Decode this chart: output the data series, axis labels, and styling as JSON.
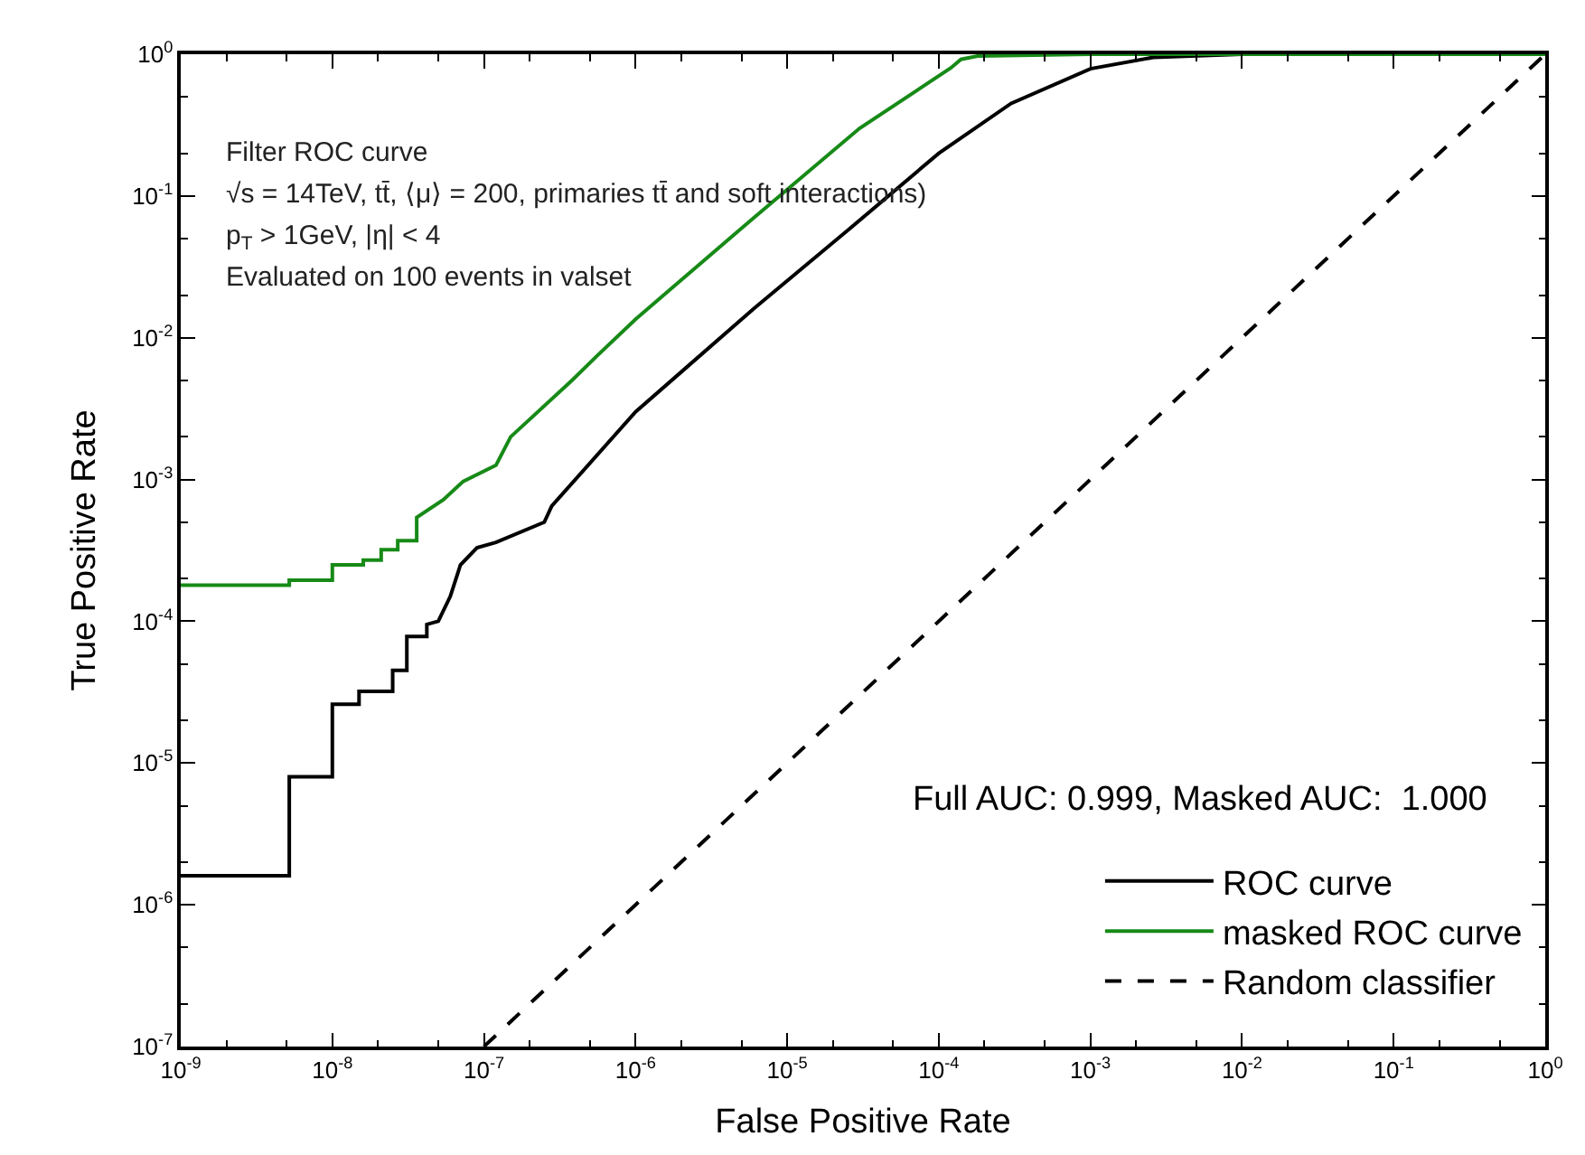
{
  "chart_data": {
    "type": "line",
    "xlabel": "False Positive Rate",
    "ylabel": "True Positive Rate",
    "log": "xy",
    "legend": "bottom right",
    "xlim": [
      1e-09,
      1
    ],
    "xticks": [
      {
        "value": 1e-09,
        "label": "10$^{-9}$"
      },
      {
        "value": 1e-08,
        "label": "10$^{-8}$"
      },
      {
        "value": 1e-07,
        "label": "10$^{-7}$"
      },
      {
        "value": 1e-06,
        "label": "10$^{-6}$"
      },
      {
        "value": 1e-05,
        "label": "10$^{-5}$"
      },
      {
        "value": 0.0001,
        "label": "10$^{-4}$"
      },
      {
        "value": 0.001,
        "label": "10$^{-3}$"
      },
      {
        "value": 0.01,
        "label": "10$^{-2}$"
      },
      {
        "value": 0.1,
        "label": "10$^{-1}$"
      },
      {
        "value": 1,
        "label": "10$^{0}$"
      }
    ],
    "ylim": [
      1e-07,
      1
    ],
    "yticks": [
      {
        "value": 1e-07,
        "label": "10$^{-7}$"
      },
      {
        "value": 1e-06,
        "label": "10$^{-6}$"
      },
      {
        "value": 1e-05,
        "label": "10$^{-5}$"
      },
      {
        "value": 0.0001,
        "label": "10$^{-4}$"
      },
      {
        "value": 0.001,
        "label": "10$^{-3}$"
      },
      {
        "value": 0.01,
        "label": "10$^{-2}$"
      },
      {
        "value": 0.1,
        "label": "10$^{-1}$"
      },
      {
        "value": 1,
        "label": "10$^{0}$"
      }
    ],
    "annotations": [
      "Filter ROC curve",
      "√s = 14TeV, tt̄, ⟨μ⟩ = 200, primaries tt̄ and soft interactions)",
      "p$_{T}$ > 1GeV, |η| < 4",
      "Evaluated on 100 events in valset",
      "Full AUC: 0.999, Masked AUC:  1.000"
    ],
    "series": [
      {
        "name": "ROC curve",
        "color": "#000000",
        "line_style": "solid",
        "x": [
          1e-09,
          5.2e-09,
          5.2e-09,
          1e-08,
          1e-08,
          1.5e-08,
          1.5e-08,
          2.5e-08,
          2.5e-08,
          3.1e-08,
          3.1e-08,
          4.2e-08,
          4.2e-08,
          5e-08,
          6e-08,
          7e-08,
          9e-08,
          1.2e-07,
          2.5e-07,
          2.8e-07,
          1e-06,
          6e-06,
          2.4e-05,
          0.0001,
          0.0003,
          0.001,
          0.0026,
          0.01,
          1
        ],
        "values": [
          1.6e-06,
          1.6e-06,
          8e-06,
          8e-06,
          2.6e-05,
          2.6e-05,
          3.2e-05,
          3.2e-05,
          4.5e-05,
          4.5e-05,
          7.8e-05,
          7.8e-05,
          9.5e-05,
          0.0001,
          0.00015,
          0.00025,
          0.00033,
          0.00036,
          0.0005,
          0.00065,
          0.003,
          0.016,
          0.055,
          0.2,
          0.45,
          0.79,
          0.95,
          1,
          1
        ]
      },
      {
        "name": "masked ROC curve",
        "color": "#178a17",
        "line_style": "solid",
        "x": [
          1e-09,
          5.2e-09,
          5.2e-09,
          1e-08,
          1e-08,
          1.6e-08,
          1.6e-08,
          2.1e-08,
          2.1e-08,
          2.7e-08,
          2.7e-08,
          3.6e-08,
          3.6e-08,
          5.4e-08,
          7.3e-08,
          1.2e-07,
          1.5e-07,
          3.8e-07,
          5.6e-07,
          1e-06,
          1.7e-06,
          6e-06,
          3e-05,
          0.00012,
          0.00014,
          0.00018,
          0.001,
          1
        ],
        "values": [
          0.00018,
          0.00018,
          0.000195,
          0.000195,
          0.00025,
          0.00025,
          0.00027,
          0.00027,
          0.00032,
          0.00032,
          0.00037,
          0.00037,
          0.00054,
          0.00072,
          0.00097,
          0.00126,
          0.002,
          0.005,
          0.0075,
          0.0135,
          0.022,
          0.07,
          0.3,
          0.8,
          0.92,
          0.97,
          1,
          1
        ]
      },
      {
        "name": "Random classifier",
        "color": "#000000",
        "line_style": "dashed",
        "x": [
          1e-07,
          1
        ],
        "values": [
          1e-07,
          1
        ]
      }
    ]
  }
}
